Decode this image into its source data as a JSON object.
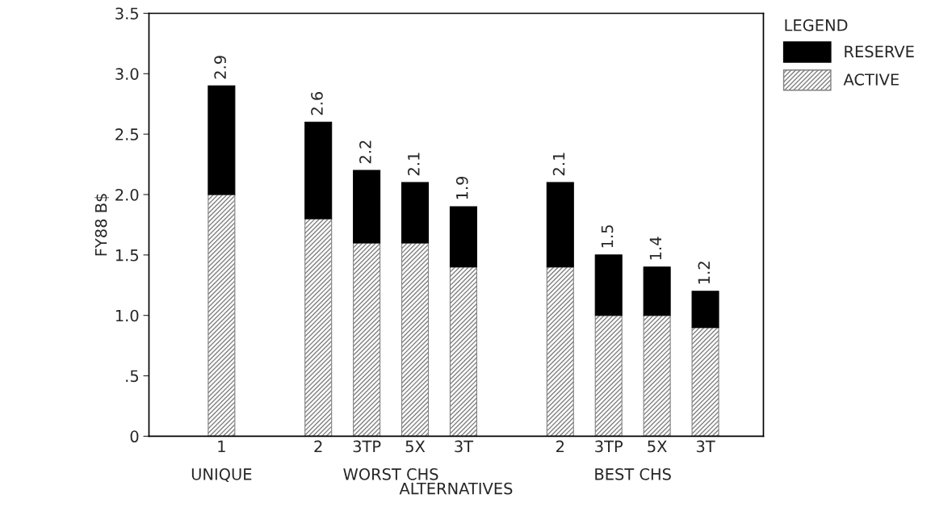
{
  "chart_data": {
    "type": "bar",
    "stacked": true,
    "xlabel": "ALTERNATIVES",
    "ylabel": "FY88 B$",
    "legend_title": "LEGEND",
    "legend": "top right",
    "categories": [
      "1",
      null,
      "2",
      "3TP",
      "5X",
      "3T",
      null,
      "2",
      "3TP",
      "5X",
      "3T"
    ],
    "series": [
      {
        "name": "ACTIVE",
        "color": "#808080",
        "values": [
          2.0,
          null,
          1.8,
          1.6,
          1.6,
          1.4,
          null,
          1.4,
          1.0,
          1.0,
          0.9
        ]
      },
      {
        "name": "RESERVE",
        "color": "#000000",
        "values": [
          0.9,
          null,
          0.8,
          0.6,
          0.5,
          0.5,
          null,
          0.7,
          0.5,
          0.4,
          0.3
        ]
      }
    ],
    "totals": [
      "2.9",
      null,
      "2.6",
      "2.2",
      "2.1",
      "1.9",
      null,
      "2.1",
      "1.5",
      "1.4",
      "1.2"
    ],
    "annotations": [
      "UNIQUE",
      "WORST CHS",
      "BEST CHS"
    ],
    "ylim": [
      0,
      3.5
    ],
    "yticks": [
      0,
      {
        "value": 0.5,
        "label": ".5"
      },
      {
        "value": 1.0,
        "label": "1.0"
      },
      {
        "value": 1.5,
        "label": "1.5"
      },
      {
        "value": 2.0,
        "label": "2.0"
      },
      {
        "value": 2.5,
        "label": "2.5"
      },
      {
        "value": 3.0,
        "label": "3.0"
      },
      {
        "value": 3.5,
        "label": "3.5"
      }
    ],
    "grid": false
  }
}
